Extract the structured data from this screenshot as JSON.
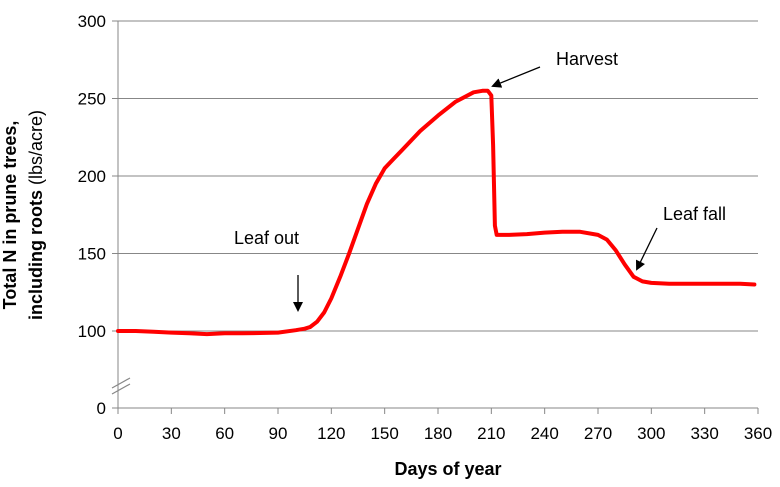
{
  "chart_data": {
    "type": "line",
    "xlabel": "Days of year",
    "ylabel_bold": "Total N in prune trees, including roots",
    "ylabel_unit": "(lbs/acre)",
    "xlim": [
      0,
      360
    ],
    "ylim": [
      0,
      300
    ],
    "axis_break": "between 0 and 100",
    "x_ticks": [
      0,
      30,
      60,
      90,
      120,
      150,
      180,
      210,
      240,
      270,
      300,
      330,
      360
    ],
    "y_ticks": [
      0,
      100,
      150,
      200,
      250,
      300
    ],
    "grid": "horizontal",
    "line_color": "#ff0000",
    "series": [
      {
        "x": [
          0,
          10,
          20,
          30,
          40,
          50,
          60,
          70,
          80,
          90,
          100,
          105,
          108,
          112,
          116,
          120,
          125,
          130,
          135,
          140,
          145,
          150,
          155,
          160,
          170,
          180,
          190,
          200,
          205,
          208,
          210,
          211,
          212,
          213,
          220,
          230,
          240,
          250,
          260,
          270,
          275,
          280,
          285,
          290,
          295,
          300,
          310,
          320,
          330,
          340,
          350,
          358
        ],
        "y": [
          100,
          100,
          99.5,
          99,
          98.5,
          98,
          98.5,
          98.5,
          98.7,
          99,
          100.5,
          101.5,
          102.5,
          106,
          112,
          121,
          135,
          150,
          166,
          182,
          195,
          205,
          211,
          217,
          229,
          239,
          248,
          254,
          255,
          255,
          252,
          220,
          168,
          162,
          162,
          162.5,
          163.5,
          164,
          164,
          162,
          159,
          152,
          143,
          135,
          132,
          131,
          130.5,
          130.5,
          130.5,
          130.5,
          130.5,
          130
        ]
      }
    ],
    "annotations": [
      {
        "text": "Leaf out",
        "x": 105,
        "y": 101
      },
      {
        "text": "Harvest",
        "x": 211,
        "y": 254
      },
      {
        "text": "Leaf fall",
        "x": 297,
        "y": 130
      }
    ]
  }
}
